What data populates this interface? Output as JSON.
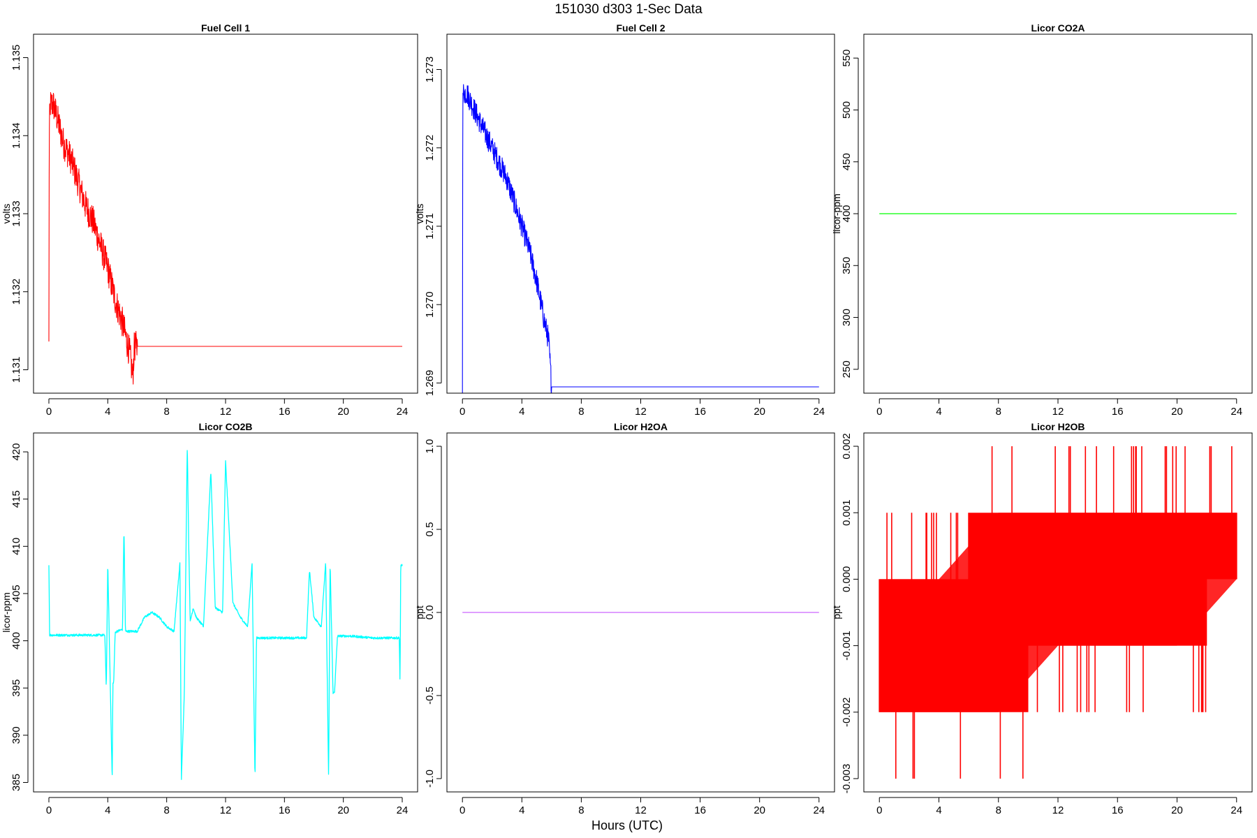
{
  "figure": {
    "title": "151030   d303   1-Sec Data",
    "xlabel": "Hours (UTC)"
  },
  "chart_data": [
    {
      "type": "line",
      "title": "Fuel Cell 1",
      "xlabel": "",
      "ylabel": "volts",
      "color": "#ff0000",
      "xlim": [
        0,
        24
      ],
      "ylim": [
        1.1307,
        1.1353
      ],
      "x_ticks": [
        0,
        4,
        8,
        12,
        16,
        20,
        24
      ],
      "y_ticks": [
        "1.131",
        "1.132",
        "1.133",
        "1.134",
        "1.135"
      ],
      "series": [
        {
          "x": [
            0.0,
            0.02,
            0.05,
            0.1,
            0.3,
            0.6,
            1.0,
            1.5,
            2.0,
            2.5,
            3.0,
            3.5,
            4.0,
            4.5,
            5.0,
            5.5,
            5.7,
            5.8,
            6.0,
            10.0,
            16.0,
            20.0,
            24.0
          ],
          "y": [
            1.1313,
            1.1339,
            1.1342,
            1.1344,
            1.1344,
            1.1342,
            1.1339,
            1.1337,
            1.1334,
            1.1331,
            1.1329,
            1.1326,
            1.1323,
            1.1319,
            1.1316,
            1.1312,
            1.1309,
            1.1313,
            1.1313,
            1.1313,
            1.1313,
            1.1313,
            1.1313
          ],
          "noise": 0.0004
        }
      ]
    },
    {
      "type": "line",
      "title": "Fuel Cell 2",
      "xlabel": "",
      "ylabel": "volts",
      "color": "#0000ff",
      "xlim": [
        0,
        24
      ],
      "ylim": [
        1.26887,
        1.27345
      ],
      "x_ticks": [
        0,
        4,
        8,
        12,
        16,
        20,
        24
      ],
      "y_ticks": [
        "1.269",
        "1.270",
        "1.271",
        "1.272",
        "1.273"
      ],
      "series": [
        {
          "x": [
            0.0,
            0.02,
            0.05,
            0.3,
            1.0,
            1.5,
            2.0,
            2.5,
            3.0,
            3.5,
            4.0,
            4.5,
            5.0,
            5.5,
            5.8,
            6.0,
            10.0,
            16.0,
            20.0,
            24.0
          ],
          "y": [
            1.26895,
            1.2725,
            1.2727,
            1.2727,
            1.2724,
            1.2722,
            1.272,
            1.2718,
            1.2716,
            1.2713,
            1.271,
            1.2707,
            1.2703,
            1.2698,
            1.26955,
            1.26895,
            1.26895,
            1.26895,
            1.26895,
            1.26895
          ],
          "noise": 0.0003
        }
      ]
    },
    {
      "type": "line",
      "title": "Licor CO2A",
      "xlabel": "",
      "ylabel": "licor-ppm",
      "color": "#00ff00",
      "xlim": [
        0,
        24
      ],
      "ylim": [
        227,
        573
      ],
      "x_ticks": [
        0,
        4,
        8,
        12,
        16,
        20,
        24
      ],
      "y_ticks": [
        "250",
        "300",
        "350",
        "400",
        "450",
        "500",
        "550"
      ],
      "series": [
        {
          "x": [
            0,
            24
          ],
          "y": [
            400,
            400
          ],
          "noise": 0
        }
      ]
    },
    {
      "type": "line",
      "title": "Licor CO2B",
      "xlabel": "",
      "ylabel": "licor-ppm",
      "color": "#00ffff",
      "xlim": [
        0,
        24
      ],
      "ylim": [
        384,
        422
      ],
      "x_ticks": [
        0,
        4,
        8,
        12,
        16,
        20,
        24
      ],
      "y_ticks": [
        "385",
        "390",
        "395",
        "400",
        "405",
        "410",
        "415",
        "420"
      ],
      "series": [
        {
          "x": [
            0.0,
            0.05,
            0.1,
            2.0,
            3.8,
            3.9,
            4.0,
            4.3,
            4.35,
            4.4,
            4.5,
            4.6,
            5.0,
            5.1,
            5.2,
            6.0,
            6.5,
            7.0,
            7.5,
            8.0,
            8.5,
            8.9,
            9.0,
            9.2,
            9.4,
            9.5,
            9.6,
            9.8,
            10.0,
            10.5,
            11.0,
            11.3,
            11.8,
            12.0,
            12.5,
            13.0,
            13.5,
            13.8,
            14.0,
            14.1,
            14.2,
            14.3,
            16.0,
            17.5,
            17.7,
            18.0,
            18.5,
            18.8,
            19.0,
            19.1,
            19.3,
            19.4,
            19.6,
            20.0,
            20.5,
            22.0,
            23.8,
            23.85,
            23.9,
            24.0
          ],
          "y": [
            408.0,
            400.6,
            400.6,
            400.6,
            400.6,
            395.0,
            408.2,
            385.2,
            395.5,
            395.5,
            400.8,
            401.0,
            401.2,
            412.0,
            401.0,
            401.0,
            402.5,
            403.0,
            402.5,
            401.5,
            401.0,
            408.2,
            385.3,
            394.5,
            421.0,
            410.0,
            402.0,
            403.5,
            402.5,
            401.5,
            418.0,
            403.5,
            403.0,
            419.0,
            404.0,
            402.5,
            401.5,
            408.2,
            385.3,
            400.3,
            400.3,
            400.3,
            400.3,
            400.3,
            407.5,
            402.5,
            401.5,
            408.3,
            385.2,
            408.3,
            394.5,
            394.5,
            400.5,
            400.5,
            400.5,
            400.3,
            400.3,
            395.5,
            408.0,
            408.0
          ],
          "noise": 0.25
        }
      ]
    },
    {
      "type": "line",
      "title": "Licor H2OA",
      "xlabel": "",
      "ylabel": "ppt",
      "color": "#cc66ff",
      "xlim": [
        0,
        24
      ],
      "ylim": [
        -1.08,
        1.08
      ],
      "x_ticks": [
        0,
        4,
        8,
        12,
        16,
        20,
        24
      ],
      "y_ticks": [
        "-1.0",
        "-0.5",
        "0.0",
        "0.5",
        "1.0"
      ],
      "series": [
        {
          "x": [
            0,
            24
          ],
          "y": [
            0,
            0
          ],
          "noise": 0
        }
      ]
    },
    {
      "type": "line",
      "title": "Licor H2OB",
      "xlabel": "",
      "ylabel": "ppt",
      "color": "#ff0000",
      "xlim": [
        0,
        24
      ],
      "ylim": [
        -0.0032,
        0.0022
      ],
      "x_ticks": [
        0,
        4,
        8,
        12,
        16,
        20,
        24
      ],
      "y_ticks": [
        "-0.003",
        "-0.002",
        "-0.001",
        "0.000",
        "0.001",
        "0.002"
      ],
      "series": [
        {
          "x": [
            0,
            4,
            8,
            12,
            16,
            20,
            24
          ],
          "y_min": [
            -0.002,
            -0.002,
            -0.002,
            -0.001,
            -0.001,
            -0.001,
            0.0
          ],
          "y_max": [
            0.0,
            0.0,
            0.001,
            0.001,
            0.001,
            0.001,
            0.001
          ],
          "noise": 0.001
        }
      ]
    }
  ]
}
